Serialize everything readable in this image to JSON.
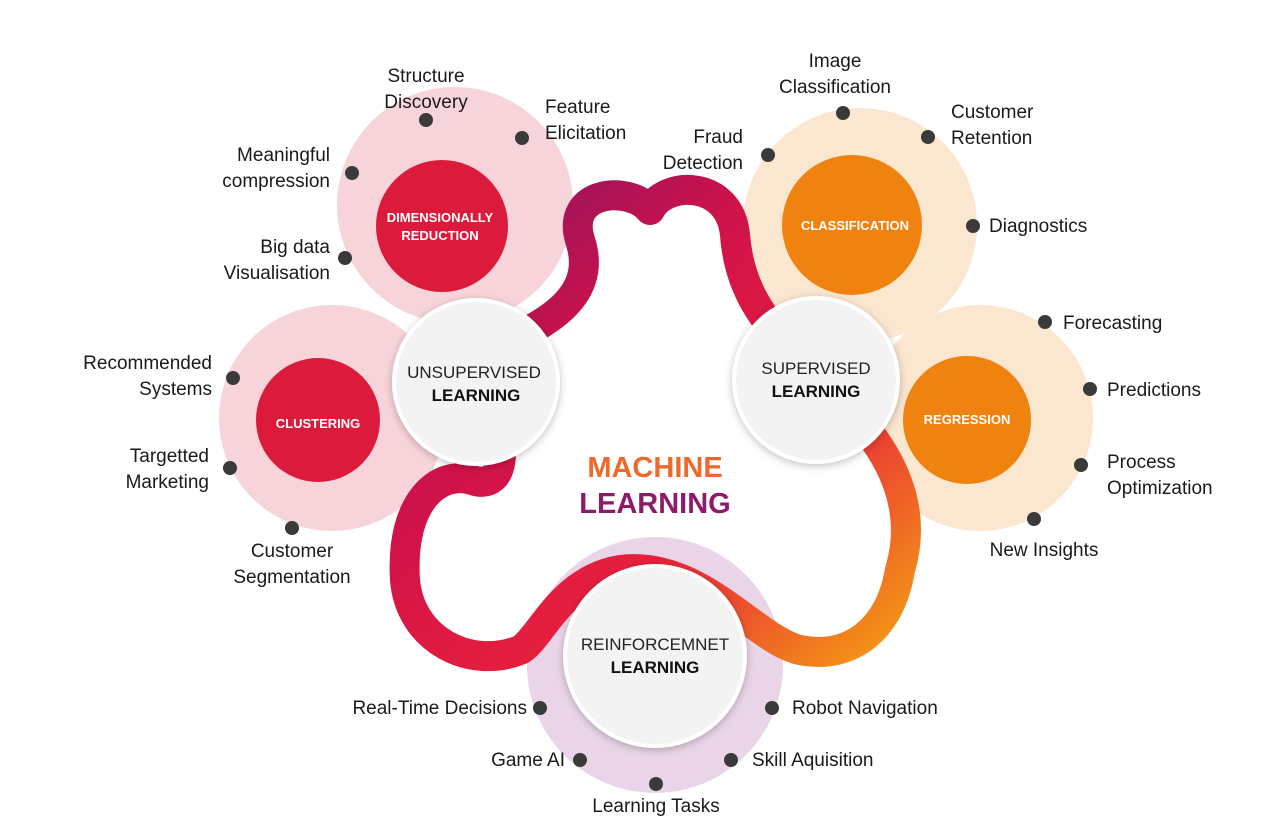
{
  "colors": {
    "red": "#dc1a3c",
    "orange": "#f0820f",
    "purple": "#7d1466",
    "pink_halo": "#f7d4d9",
    "peach_halo": "#fbe6cf",
    "lilac_halo": "#e9d5e7",
    "hub_fill": "#f3f3f3",
    "dot": "#3a3a3a"
  },
  "title": {
    "line1": "MACHINE",
    "line2": "LEARNING"
  },
  "hubs": {
    "unsupervised": {
      "top": "UNSUPERVISED",
      "bottom": "LEARNING"
    },
    "supervised": {
      "top": "SUPERVISED",
      "bottom": "LEARNING"
    },
    "reinforcement": {
      "top": "REINFORCEMNET",
      "bottom": "LEARNING"
    }
  },
  "subcategories": {
    "dimensionality": {
      "line1": "DIMENSIONALLY",
      "line2": "REDUCTION"
    },
    "clustering": {
      "line1": "CLUSTERING"
    },
    "classification": {
      "line1": "CLASSIFICATION"
    },
    "regression": {
      "line1": "REGRESSION"
    }
  },
  "leaves": {
    "structure_discovery": [
      "Structure",
      "Discovery"
    ],
    "feature_elicitation": [
      "Feature",
      "Elicitation"
    ],
    "meaningful_compression": [
      "Meaningful",
      "compression"
    ],
    "big_data_visualisation": [
      "Big data",
      "Visualisation"
    ],
    "recommended_systems": [
      "Recommended",
      "Systems"
    ],
    "targetted_marketing": [
      "Targetted",
      "Marketing"
    ],
    "customer_segmentation": [
      "Customer",
      "Segmentation"
    ],
    "image_classification": [
      "Image",
      "Classification"
    ],
    "fraud_detection": [
      "Fraud",
      "Detection"
    ],
    "customer_retention": [
      "Customer",
      "Retention"
    ],
    "diagnostics": [
      "Diagnostics"
    ],
    "forecasting": [
      "Forecasting"
    ],
    "predictions": [
      "Predictions"
    ],
    "process_optimization": [
      "Process",
      "Optimization"
    ],
    "new_insights": [
      "New Insights"
    ],
    "real_time_decisions": [
      "Real-Time Decisions"
    ],
    "robot_navigation": [
      "Robot Navigation"
    ],
    "game_ai": [
      "Game AI"
    ],
    "skill_aquisition": [
      "Skill Aquisition"
    ],
    "learning_tasks": [
      "Learning Tasks"
    ]
  }
}
